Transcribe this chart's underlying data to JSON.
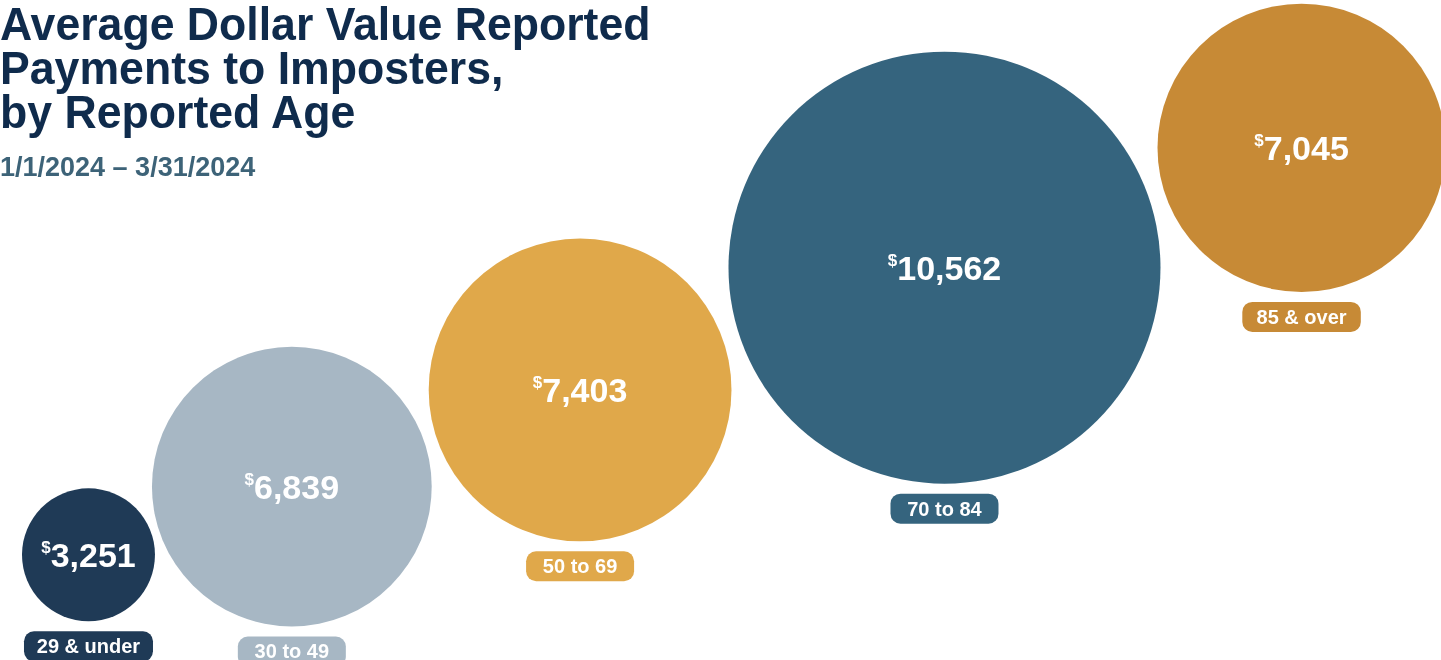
{
  "chart_data": {
    "type": "other",
    "title": "Average Dollar Value Reported\nPayments to Imposters,\nby Reported Age",
    "subtitle": "1/1/2024 – 3/31/2024",
    "categories": [
      "29 & under",
      "30 to 49",
      "50 to 69",
      "70 to 84",
      "85 & over"
    ],
    "values": [
      3251,
      6839,
      7403,
      10562,
      7045
    ],
    "value_labels": [
      "$^{$}$3,251",
      "$^{$}$6,839",
      "$^{$}$7,403",
      "$^{$}$10,562",
      "$^{$}$7,045"
    ],
    "colors": [
      "#1f3a56",
      "#a7b7c4",
      "#e0a84a",
      "#35647e",
      "#c78a36"
    ]
  }
}
